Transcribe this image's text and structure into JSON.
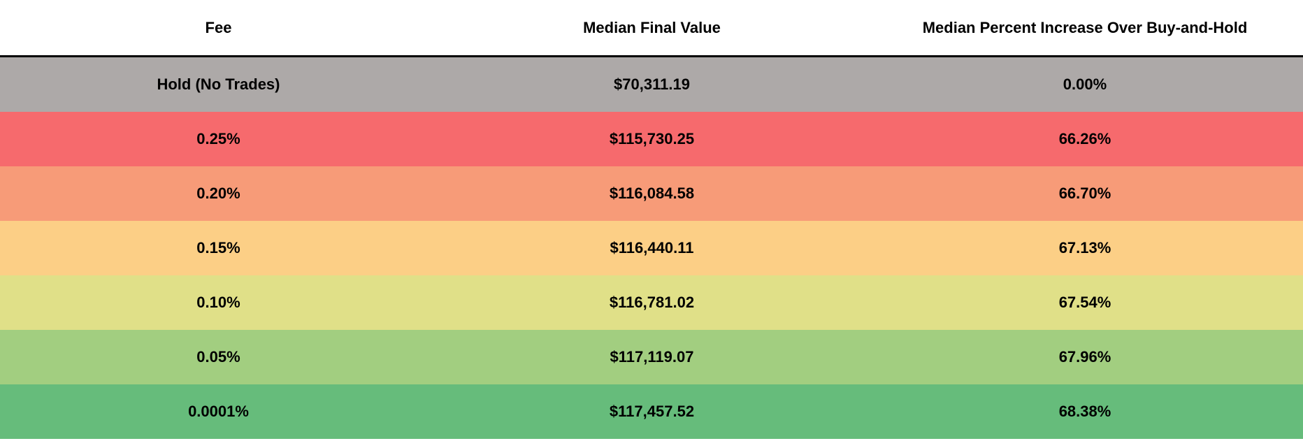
{
  "chart_data": {
    "type": "table",
    "columns": [
      "Fee",
      "Median Final Value",
      "Median Percent Increase Over Buy-and-Hold"
    ],
    "rows": [
      {
        "fee": "Hold (No Trades)",
        "median_final_value": "$70,311.19",
        "median_percent_increase": "0.00%",
        "color": "#ADA9A8"
      },
      {
        "fee": "0.25%",
        "median_final_value": "$115,730.25",
        "median_percent_increase": "66.26%",
        "color": "#F66A6D"
      },
      {
        "fee": "0.20%",
        "median_final_value": "$116,084.58",
        "median_percent_increase": "66.70%",
        "color": "#F79B78"
      },
      {
        "fee": "0.15%",
        "median_final_value": "$116,440.11",
        "median_percent_increase": "67.13%",
        "color": "#FCCF86"
      },
      {
        "fee": "0.10%",
        "median_final_value": "$116,781.02",
        "median_percent_increase": "67.54%",
        "color": "#E0E088"
      },
      {
        "fee": "0.05%",
        "median_final_value": "$117,119.07",
        "median_percent_increase": "67.96%",
        "color": "#A2CE80"
      },
      {
        "fee": "0.0001%",
        "median_final_value": "$117,457.52",
        "median_percent_increase": "68.38%",
        "color": "#66BC7B"
      }
    ]
  }
}
